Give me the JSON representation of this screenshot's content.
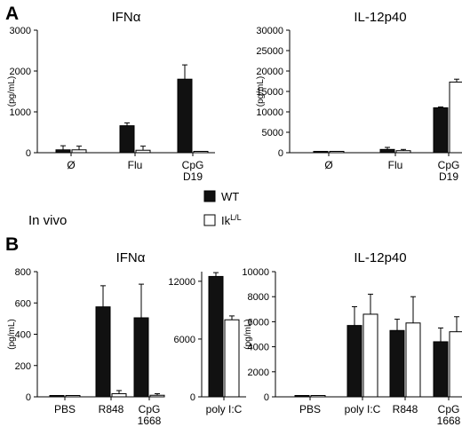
{
  "panels": {
    "a": "A",
    "b": "B",
    "in_vivo": "In vivo"
  },
  "legend": {
    "wt": "WT",
    "ik_base": "Ik",
    "ik_sup": "L/L",
    "colors": {
      "wt": "#111111",
      "ik": "#ffffff"
    }
  },
  "chart_data": [
    {
      "id": "a1",
      "type": "bar",
      "title": "IFNα",
      "ylabel": "(pg/mL)",
      "ylim": [
        0,
        3000
      ],
      "yticks": [
        0,
        1000,
        2000,
        3000
      ],
      "categories": [
        [
          "Ø"
        ],
        [
          "Flu"
        ],
        [
          "CpG",
          "D19"
        ]
      ],
      "series": [
        {
          "values": [
            70,
            660,
            1800
          ],
          "errors": [
            100,
            70,
            350
          ]
        },
        {
          "values": [
            70,
            60,
            5
          ],
          "errors": [
            90,
            100,
            0
          ]
        }
      ]
    },
    {
      "id": "a2",
      "type": "bar",
      "title": "IL-12p40",
      "ylabel": "(pg/mL)",
      "ylim": [
        0,
        30000
      ],
      "yticks": [
        0,
        5000,
        10000,
        15000,
        20000,
        25000,
        30000
      ],
      "categories": [
        [
          "Ø"
        ],
        [
          "Flu"
        ],
        [
          "CpG",
          "D19"
        ]
      ],
      "series": [
        {
          "values": [
            0,
            800,
            11000
          ],
          "errors": [
            0,
            500,
            200
          ]
        },
        {
          "values": [
            0,
            500,
            17300
          ],
          "errors": [
            0,
            300,
            700
          ]
        }
      ]
    },
    {
      "id": "b1",
      "type": "bar",
      "title": "IFNα",
      "ylabel": "(pg/mL)",
      "ylim": [
        0,
        800
      ],
      "yticks": [
        0,
        200,
        400,
        600,
        800
      ],
      "categories": [
        [
          "PBS"
        ],
        [
          "R848"
        ],
        [
          "CpG",
          "1668"
        ]
      ],
      "series": [
        {
          "values": [
            3,
            575,
            505
          ],
          "errors": [
            0,
            135,
            215
          ]
        },
        {
          "values": [
            3,
            20,
            10
          ],
          "errors": [
            0,
            20,
            10
          ]
        }
      ]
    },
    {
      "id": "b2",
      "type": "bar",
      "ylim": [
        0,
        13000
      ],
      "yticks": [
        0,
        6000,
        12000
      ],
      "categories": [
        [
          "poly I:C"
        ]
      ],
      "series": [
        {
          "values": [
            12500
          ],
          "errors": [
            400
          ]
        },
        {
          "values": [
            8000
          ],
          "errors": [
            400
          ]
        }
      ]
    },
    {
      "id": "b3",
      "type": "bar",
      "title": "IL-12p40",
      "ylabel": "(pg/mL)",
      "ylim": [
        0,
        10000
      ],
      "yticks": [
        0,
        2000,
        4000,
        6000,
        8000,
        10000
      ],
      "categories": [
        [
          "PBS"
        ],
        [
          "poly I:C"
        ],
        [
          "R848"
        ],
        [
          "CpG",
          "1668"
        ]
      ],
      "series": [
        {
          "values": [
            0,
            5700,
            5300,
            4400
          ],
          "errors": [
            0,
            1500,
            900,
            1100
          ]
        },
        {
          "values": [
            0,
            6600,
            5900,
            5200
          ],
          "errors": [
            0,
            1600,
            2100,
            1200
          ]
        }
      ]
    }
  ]
}
